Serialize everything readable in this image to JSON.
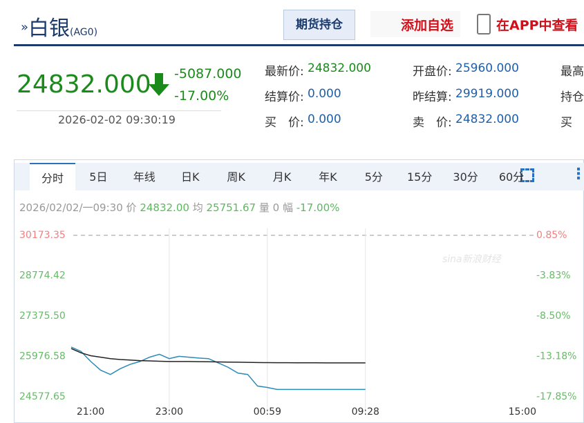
{
  "header": {
    "title": "白银",
    "code": "(AG0)",
    "position_button": "期货持仓",
    "watch_button": "添加自选",
    "app_button": "在APP中查看"
  },
  "quote": {
    "price": "24832.000",
    "change": "-5087.000",
    "change_pct": "-17.00%",
    "time": "2026-02-02 09:30:19"
  },
  "info": {
    "rows": [
      [
        [
          "最新价:",
          "24832.000"
        ],
        [
          "开盘价:",
          "25960.000"
        ],
        [
          "最高",
          ""
        ]
      ],
      [
        [
          "结算价:",
          "0.000"
        ],
        [
          "昨结算:",
          "29919.000"
        ],
        [
          "持仓",
          ""
        ]
      ],
      [
        [
          "买　价:",
          "0.000"
        ],
        [
          "卖　价:",
          "24832.000"
        ],
        [
          "买",
          ""
        ]
      ]
    ]
  },
  "tabs": [
    "分时",
    "5日",
    "年线",
    "日K",
    "周K",
    "月K",
    "年K",
    "5分",
    "15分",
    "30分",
    "60分"
  ],
  "status": {
    "date": "2026/02/02/一09:30",
    "price_label": "价",
    "price": "24832.00",
    "avg_label": "均",
    "avg": "25751.67",
    "vol_label": "量",
    "vol": "0",
    "pct_label": "幅",
    "pct": "-17.00%"
  },
  "watermark": "sina新浪财经",
  "chart_data": {
    "type": "line",
    "categories": [
      "21:00",
      null,
      null,
      null,
      null,
      null,
      null,
      null,
      null,
      null,
      "23:00",
      null,
      null,
      null,
      null,
      null,
      null,
      null,
      null,
      null,
      "00:59",
      null,
      null,
      null,
      null,
      null,
      null,
      null,
      null,
      null,
      "09:28",
      null,
      null,
      null,
      null,
      null,
      null,
      null,
      null,
      null,
      null,
      null,
      null,
      null,
      null,
      null,
      "15:00",
      null
    ],
    "series": [
      {
        "name": "价",
        "color": "#2a8ab8",
        "values": [
          26300,
          26150,
          25800,
          25500,
          25350,
          25550,
          25700,
          25800,
          25950,
          26050,
          25900,
          25980,
          25950,
          25920,
          25900,
          25750,
          25600,
          25400,
          25350,
          24950,
          24900,
          24832,
          24832,
          24832,
          24832,
          24832,
          24832,
          24832,
          24832,
          24832,
          24832,
          null,
          null,
          null,
          null,
          null,
          null,
          null,
          null,
          null,
          null,
          null,
          null,
          null,
          null,
          null,
          null,
          null
        ]
      },
      {
        "name": "均",
        "color": "#222222",
        "values": [
          26250,
          26100,
          26000,
          25950,
          25900,
          25870,
          25850,
          25830,
          25820,
          25810,
          25800,
          25800,
          25800,
          25795,
          25790,
          25785,
          25780,
          25775,
          25770,
          25765,
          25760,
          25758,
          25757,
          25756,
          25755,
          25754,
          25753,
          25753,
          25752,
          25752,
          25751.67,
          null,
          null,
          null,
          null,
          null,
          null,
          null,
          null,
          null,
          null,
          null,
          null,
          null,
          null,
          null,
          null,
          null
        ]
      }
    ],
    "ylim": [
      24577.65,
      30173.35
    ],
    "yticks": [
      30173.35,
      28774.42,
      {
        "value": 27375.5,
        "label": "27375.50"
      },
      25976.58,
      24577.65
    ],
    "y2lim": [
      -17.85,
      0.85
    ],
    "y2ticks": [
      {
        "value": 0.85,
        "label": "0.85%"
      },
      {
        "value": -3.83,
        "label": "-3.83%"
      },
      {
        "value": -8.5,
        "label": "-8.50%"
      },
      {
        "value": -13.18,
        "label": "-13.18%"
      },
      {
        "value": -17.85,
        "label": "-17.85%"
      }
    ],
    "up_color": "#f08080",
    "down_color": "#66bb66"
  }
}
